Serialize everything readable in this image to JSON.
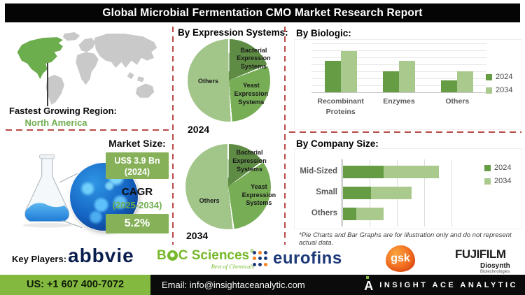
{
  "title": "Global Microbial Fermentation CMO Market Research Report",
  "left_panel": {
    "region_label": "Fastest Growing Region:",
    "region_value": "North America",
    "market_heading": "Market Size:",
    "market_value": "US$ 3.9 Bn",
    "market_year": "(2024)",
    "cagr_label": "CAGR",
    "cagr_period": "(2025-2034)",
    "cagr_value": "5.2%"
  },
  "chart_data": [
    {
      "name": "by-expression-systems-2024",
      "type": "pie",
      "title": "By Expression Systems:",
      "year_label": "2024",
      "slices": [
        {
          "label": "Bacterial Expression Systems",
          "value": 19,
          "color": "#5e8c44"
        },
        {
          "label": "Yeast Expression Systems",
          "value": 30,
          "color": "#76ad55"
        },
        {
          "label": "Others",
          "value": 51,
          "color": "#a2c68a"
        }
      ]
    },
    {
      "name": "by-expression-systems-2034",
      "type": "pie",
      "year_label": "2034",
      "slices": [
        {
          "label": "Bacterial Expression Systems",
          "value": 15,
          "color": "#5e8c44"
        },
        {
          "label": "Yeast Expression Systems",
          "value": 33,
          "color": "#76ad55"
        },
        {
          "label": "Others",
          "value": 52,
          "color": "#a2c68a"
        }
      ]
    },
    {
      "name": "by-biologic",
      "type": "bar",
      "title": "By Biologic:",
      "categories": [
        "Recombinant\nProteins",
        "Enzymes",
        "Others"
      ],
      "series": [
        {
          "name": "2024",
          "color": "#669c44",
          "values": [
            65,
            43,
            24
          ]
        },
        {
          "name": "2034",
          "color": "#a9ca8c",
          "values": [
            85,
            65,
            43
          ]
        }
      ],
      "ylim": [
        0,
        100
      ],
      "grid": true,
      "legend_position": "right"
    },
    {
      "name": "by-company-size",
      "type": "bar",
      "orientation": "horizontal-stacked",
      "title": "By Company Size:",
      "categories": [
        "Mid-Sized",
        "Small",
        "Others"
      ],
      "series": [
        {
          "name": "2024",
          "color": "#669c44",
          "values": [
            37,
            25,
            12
          ]
        },
        {
          "name": "2034",
          "color": "#a9ca8c",
          "values": [
            50,
            37,
            25
          ]
        }
      ],
      "xlim": [
        0,
        100
      ],
      "grid": true,
      "legend_position": "right"
    }
  ],
  "footnote": "*Pie Charts and Bar Graphs are for illustration only and do not represent actual data.",
  "key_players": {
    "label": "Key Players:",
    "abbvie": "abbvie",
    "boc": {
      "b": "B",
      "c_sciences": "C Sciences",
      "reg": "®",
      "tagline": "Best of Chemicals"
    },
    "eurofins": "eurofins",
    "gsk": "gsk",
    "fujifilm": {
      "main": "FUJIFILM",
      "sub": "Diosynth",
      "sub2": "Biotechnologies"
    }
  },
  "footer": {
    "phone": "US: +1 607 400-7072",
    "email": "Email: info@insightaceanalytic.com",
    "brand": "INSIGHT ACE ANALYTIC",
    "logo_letter": "A"
  },
  "icons": {
    "boc_flower": "✽"
  },
  "palette": {
    "accent-box": "#86b159",
    "text-green": "#6fae4f",
    "dash-red": "#b94a48",
    "footer-green": "#84b940",
    "map-green": "#6cae4e",
    "map-gray": "#c9c9c9",
    "abbvie-navy": "#0a1e4e",
    "boc-green": "#76b82a",
    "eurofins-blue": "#1d3a78",
    "eurofins-orange": "#f58220",
    "gsk-orange": "#f36f21",
    "diosynth-teal": "#00a3b4"
  }
}
